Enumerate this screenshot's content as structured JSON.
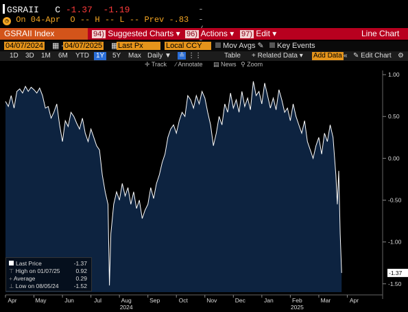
{
  "quote": {
    "ticker": "GSRAII",
    "close_label": "C",
    "close_value": "-1.37",
    "change": "-1.19",
    "dash_box": "-- / --",
    "on_date": "On 04-Apr",
    "ohl": "O -- H -- L -- Prev",
    "prev_value": "-.83"
  },
  "func_bar": {
    "index_label": "GSRAII Index",
    "suggested_key": "94)",
    "suggested_label": "Suggested Charts",
    "actions_key": "96)",
    "actions_label": "Actions",
    "edit_key": "97)",
    "edit_label": "Edit",
    "chart_type": "Line Chart"
  },
  "options": {
    "start_date": "04/07/2024",
    "end_date": "04/07/2025",
    "field": "Last Px",
    "currency": "Local CCY",
    "mov_avgs": "Mov Avgs",
    "key_events": "Key Events"
  },
  "ranges": {
    "items": [
      "1D",
      "3D",
      "1M",
      "6M",
      "YTD",
      "1Y",
      "5Y",
      "Max"
    ],
    "selected": "1Y",
    "frequency": "Daily",
    "table": "Table",
    "related_data": "+ Related Data",
    "add_data": "Add Data",
    "edit_chart": "Edit Chart"
  },
  "tools": {
    "track": "Track",
    "annotate": "Annotate",
    "news": "News",
    "zoom": "Zoom"
  },
  "legend": {
    "last_price_label": "Last Price",
    "last_price_value": "-1.37",
    "high_label": "High on 01/07/25",
    "high_value": "0.92",
    "average_label": "Average",
    "average_value": "0.29",
    "low_label": "Low on 08/05/24",
    "low_value": "-1.52"
  },
  "colors": {
    "background": "#000000",
    "plot_fill": "#0d2340",
    "line": "#ffffff",
    "accent_orange": "#e5941b",
    "func_bar_red": "#b8001f",
    "negative": "#ff3b3b"
  },
  "chart_data": {
    "type": "area",
    "title": "",
    "xlabel": "",
    "ylabel": "",
    "ylim": [
      -1.6,
      1.05
    ],
    "yticks": [
      1.0,
      0.5,
      0.0,
      -0.5,
      -1.0,
      -1.5
    ],
    "ytick_labels": [
      "1.00",
      "0.50",
      "0.00",
      "-0.50",
      "-1.00",
      "-1.50"
    ],
    "last_value_label": "-1.37",
    "xlim": [
      0,
      13.0
    ],
    "x_ticks": [
      {
        "pos": 0.0,
        "label": "Apr"
      },
      {
        "pos": 1.0,
        "label": "May"
      },
      {
        "pos": 2.0,
        "label": "Jun"
      },
      {
        "pos": 3.0,
        "label": "Jul"
      },
      {
        "pos": 4.0,
        "label": "Aug"
      },
      {
        "pos": 5.0,
        "label": "Sep"
      },
      {
        "pos": 6.0,
        "label": "Oct"
      },
      {
        "pos": 7.0,
        "label": "Nov"
      },
      {
        "pos": 8.0,
        "label": "Dec"
      },
      {
        "pos": 9.0,
        "label": "Jan"
      },
      {
        "pos": 10.0,
        "label": "Feb"
      },
      {
        "pos": 11.0,
        "label": "Mar"
      },
      {
        "pos": 12.0,
        "label": "Apr"
      }
    ],
    "year_labels": [
      {
        "pos": 4.0,
        "label": "2024"
      },
      {
        "pos": 10.0,
        "label": "2025"
      }
    ],
    "grid": false,
    "series": [
      {
        "x": [
          0.0,
          0.1,
          0.2,
          0.3,
          0.4,
          0.5,
          0.6,
          0.7,
          0.8,
          0.9,
          1.0,
          1.1,
          1.2,
          1.3,
          1.4,
          1.5,
          1.6,
          1.7,
          1.8,
          1.9,
          2.0,
          2.1,
          2.2,
          2.3,
          2.4,
          2.5,
          2.6,
          2.7,
          2.8,
          2.9,
          3.0,
          3.1,
          3.2,
          3.3,
          3.4,
          3.5,
          3.6,
          3.65,
          3.7,
          3.8,
          3.9,
          4.0,
          4.1,
          4.2,
          4.3,
          4.4,
          4.5,
          4.6,
          4.7,
          4.8,
          4.9,
          5.0,
          5.1,
          5.2,
          5.3,
          5.4,
          5.5,
          5.6,
          5.7,
          5.8,
          5.9,
          6.0,
          6.1,
          6.2,
          6.3,
          6.4,
          6.5,
          6.6,
          6.7,
          6.8,
          6.9,
          7.0,
          7.1,
          7.2,
          7.3,
          7.4,
          7.5,
          7.6,
          7.7,
          7.8,
          7.9,
          8.0,
          8.1,
          8.2,
          8.3,
          8.4,
          8.5,
          8.6,
          8.7,
          8.8,
          8.9,
          9.0,
          9.1,
          9.2,
          9.3,
          9.4,
          9.5,
          9.6,
          9.7,
          9.8,
          9.9,
          10.0,
          10.1,
          10.2,
          10.3,
          10.4,
          10.5,
          10.6,
          10.7,
          10.8,
          10.9,
          11.0,
          11.1,
          11.2,
          11.3,
          11.4,
          11.5,
          11.6,
          11.65,
          11.7,
          11.75,
          11.8
        ],
        "values": [
          0.68,
          0.62,
          0.75,
          0.6,
          0.8,
          0.83,
          0.78,
          0.86,
          0.8,
          0.85,
          0.82,
          0.78,
          0.84,
          0.75,
          0.6,
          0.62,
          0.48,
          0.55,
          0.65,
          0.4,
          0.2,
          0.45,
          0.38,
          0.55,
          0.5,
          0.42,
          0.35,
          0.48,
          0.3,
          0.2,
          0.35,
          0.25,
          0.15,
          0.1,
          -0.2,
          -0.4,
          -0.55,
          -1.52,
          -0.9,
          -0.55,
          -0.4,
          -0.5,
          -0.3,
          -0.45,
          -0.35,
          -0.55,
          -0.4,
          -0.6,
          -0.5,
          -0.72,
          -0.62,
          -0.55,
          -0.35,
          -0.48,
          -0.3,
          -0.2,
          -0.05,
          0.05,
          0.25,
          0.35,
          0.4,
          0.3,
          0.45,
          0.55,
          0.5,
          0.75,
          0.7,
          0.6,
          0.75,
          0.65,
          0.8,
          0.72,
          0.55,
          0.4,
          0.15,
          0.3,
          0.5,
          0.4,
          0.65,
          0.55,
          0.78,
          0.6,
          0.7,
          0.55,
          0.8,
          0.62,
          0.72,
          0.58,
          0.92,
          0.75,
          0.8,
          0.65,
          0.9,
          0.75,
          0.6,
          0.72,
          0.58,
          0.82,
          0.7,
          0.55,
          0.6,
          0.45,
          0.65,
          0.5,
          0.4,
          0.3,
          0.45,
          0.2,
          0.1,
          0.0,
          0.15,
          0.25,
          0.05,
          0.3,
          0.2,
          0.4,
          0.25,
          -0.2,
          -0.55,
          -0.15,
          -0.9,
          -1.37
        ]
      }
    ]
  }
}
